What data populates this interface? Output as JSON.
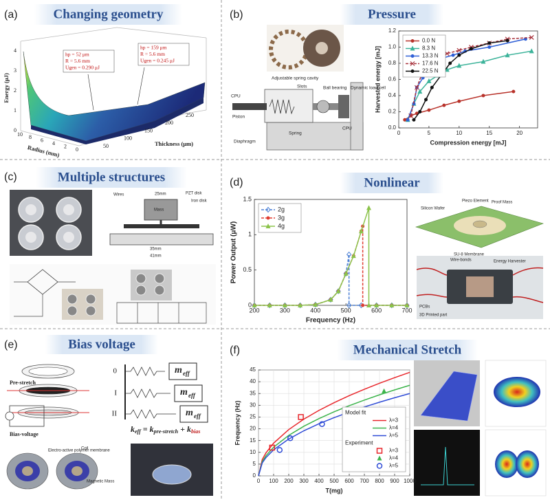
{
  "panels": [
    {
      "letter": "(a)",
      "title": "Changing geometry",
      "surface": {
        "zlabel": "Energy (μJ)",
        "xlabel": "Radius (mm)",
        "ylabel": "Thickness (μm)",
        "zticks": [
          0,
          1,
          2,
          3,
          4
        ],
        "xticks": [
          10,
          8,
          6,
          4,
          2,
          0
        ],
        "yticks": [
          50,
          100,
          150,
          200,
          250
        ],
        "annotations": [
          [
            "hp = 52 μm",
            "R = 5.6 mm",
            "Ugen = 0.290 μJ"
          ],
          [
            "hp = 159 μm",
            "R = 5.6 mm",
            "Ugen = 0.245 μJ"
          ]
        ]
      }
    },
    {
      "letter": "(b)",
      "title": "Pressure",
      "diagram_labels": [
        "Adjustable spring cavity",
        "Slots",
        "Ball bearing",
        "Dynamic load cell",
        "CPU",
        "Piston",
        "Spring",
        "Diaphragm",
        "CPU"
      ],
      "chart": {
        "type": "line",
        "xlabel": "Compression energy [mJ]",
        "ylabel": "Harvested energy [mJ]",
        "xlim": [
          0,
          23
        ],
        "xticks": [
          0,
          5,
          10,
          15,
          20
        ],
        "ylim": [
          0,
          1.2
        ],
        "yticks": [
          {
            "value": 0,
            "label": "0.0"
          },
          0.2,
          0.4,
          0.6,
          0.8,
          {
            "value": 1,
            "label": "1.0"
          },
          1.2
        ],
        "grid": false,
        "legend": "upper left",
        "series": [
          {
            "name": "0.0 N",
            "color": "#b8322a",
            "marker": "circle",
            "x": [
              1,
              2,
              3,
              5,
              7.5,
              10,
              14,
              19
            ],
            "values": [
              0.1,
              0.15,
              0.18,
              0.22,
              0.28,
              0.33,
              0.4,
              0.45
            ]
          },
          {
            "name": "8.3 N",
            "color": "#3cb39a",
            "marker": "triangle",
            "x": [
              1.5,
              2.5,
              3.5,
              5,
              6.5,
              8,
              10,
              14,
              18,
              22
            ],
            "values": [
              0.1,
              0.3,
              0.45,
              0.58,
              0.65,
              0.72,
              0.77,
              0.82,
              0.9,
              0.95
            ]
          },
          {
            "name": "13.3 N",
            "color": "#2e5fd6",
            "marker": "circle",
            "x": [
              1.5,
              2.5,
              3,
              4,
              5,
              6,
              7,
              9,
              11,
              15,
              21
            ],
            "values": [
              0.1,
              0.3,
              0.5,
              0.62,
              0.7,
              0.8,
              0.86,
              0.9,
              0.95,
              1.0,
              1.1
            ]
          },
          {
            "name": "17.6 N",
            "color": "#a8323c",
            "marker": "x",
            "dash": true,
            "x": [
              2,
              3,
              4,
              5,
              6,
              8,
              10,
              12,
              15,
              18,
              22
            ],
            "values": [
              0.15,
              0.5,
              0.7,
              0.82,
              0.87,
              0.92,
              0.96,
              1.0,
              1.05,
              1.1,
              1.12
            ]
          },
          {
            "name": "22.5 N",
            "color": "#111111",
            "marker": "circle",
            "x": [
              2.5,
              3.5,
              4.5,
              5.5,
              7,
              8.5,
              10,
              12,
              15,
              18
            ],
            "values": [
              0.1,
              0.2,
              0.35,
              0.5,
              0.65,
              0.8,
              0.9,
              0.98,
              1.05,
              1.08
            ]
          }
        ]
      }
    },
    {
      "letter": "(c)",
      "title": "Multiple structures",
      "diagram_labels": [
        "Wires",
        "Mass",
        "PZT disk",
        "Iron disk",
        "25mm",
        "35mm",
        "41mm"
      ]
    },
    {
      "letter": "(d)",
      "title": "Nonlinear",
      "diagram_labels": [
        "Silicon Wafer",
        "Piezo Element",
        "Proof Mass",
        "SU-8 Membrane",
        "Wire-bonds",
        "Energy Harvester",
        "PCBs",
        "3D Printed part"
      ],
      "chart": {
        "type": "line",
        "xlabel": "Frequency (Hz)",
        "ylabel": "Power Output (μW)",
        "xlim": [
          200,
          700
        ],
        "xticks": [
          200,
          300,
          400,
          500,
          600,
          700
        ],
        "ylim": [
          0,
          1.5
        ],
        "yticks": [
          0,
          0.5,
          1,
          1.5
        ],
        "grid": false,
        "legend": "upper left",
        "series": [
          {
            "name": "2g",
            "color": "#4a7fd4",
            "marker": "diamond",
            "dash": true,
            "x": [
              200,
              250,
              300,
              350,
              400,
              450,
              475,
              500,
              510,
              510,
              550,
              600,
              650,
              700
            ],
            "values": [
              0,
              0,
              0,
              0,
              0.01,
              0.08,
              0.2,
              0.45,
              0.72,
              0,
              0,
              0,
              0,
              0
            ]
          },
          {
            "name": "3g",
            "color": "#e03c31",
            "marker": "circle",
            "dash": true,
            "x": [
              200,
              250,
              300,
              350,
              400,
              450,
              475,
              500,
              525,
              550,
              555,
              555,
              600,
              650,
              700
            ],
            "values": [
              0,
              0,
              0,
              0,
              0.01,
              0.08,
              0.2,
              0.45,
              0.7,
              1.05,
              1.12,
              0,
              0,
              0,
              0
            ]
          },
          {
            "name": "4g",
            "color": "#8bc34a",
            "marker": "triangle",
            "x": [
              200,
              250,
              300,
              350,
              400,
              450,
              475,
              500,
              525,
              550,
              575,
              575,
              600,
              650,
              700
            ],
            "values": [
              0,
              0,
              0,
              0,
              0.01,
              0.08,
              0.2,
              0.45,
              0.7,
              1.05,
              1.38,
              0,
              0,
              0,
              0
            ]
          }
        ]
      }
    },
    {
      "letter": "(e)",
      "title": "Bias voltage",
      "diagram_labels": [
        "Pre-stretch",
        "Bias-voltage",
        "Electro-active polymer membrane",
        "Coil",
        "Magnetic Mass"
      ],
      "states": [
        "0",
        "I",
        "II"
      ],
      "mass": [
        "m",
        "eff"
      ],
      "formula": [
        "k",
        "eff",
        " = k",
        "pre-stretch",
        " + k",
        "bias"
      ]
    },
    {
      "letter": "(f)",
      "title": "Mechanical Stretch",
      "chart": {
        "type": "line",
        "xlabel": "T(mg)",
        "ylabel": "Frequency (Hz)",
        "xlim": [
          0,
          1000
        ],
        "xticks": [
          0,
          100,
          200,
          300,
          400,
          500,
          600,
          700,
          800,
          900,
          1000
        ],
        "ylim": [
          0,
          45
        ],
        "yticks": [
          0,
          5,
          10,
          15,
          20,
          25,
          30,
          35,
          40,
          45
        ],
        "grid": true,
        "legend": "lower right",
        "legend_titles": [
          "Model fit",
          "Experiment"
        ],
        "series": [
          {
            "name": "λ=3",
            "color": "#e8262b",
            "marker": "none",
            "kind": "line",
            "x": [
              0,
              25,
              50,
              100,
              200,
              300,
              400,
              500,
              600,
              700,
              800,
              900,
              1000
            ],
            "values": [
              0,
              6.96,
              9.84,
              13.91,
              19.67,
              24.1,
              27.83,
              31.11,
              34.08,
              36.81,
              39.35,
              41.74,
              44
            ]
          },
          {
            "name": "λ=4",
            "color": "#3cb44b",
            "marker": "none",
            "kind": "line",
            "x": [
              0,
              25,
              50,
              100,
              200,
              300,
              400,
              500,
              600,
              700,
              800,
              900,
              1000
            ],
            "values": [
              0,
              6.09,
              8.61,
              12.18,
              17.22,
              21.09,
              24.35,
              27.22,
              29.82,
              32.21,
              34.44,
              36.53,
              38.5
            ]
          },
          {
            "name": "λ=5",
            "color": "#2e4bd6",
            "marker": "none",
            "kind": "line",
            "x": [
              0,
              25,
              50,
              100,
              200,
              300,
              400,
              500,
              600,
              700,
              800,
              900,
              1000
            ],
            "values": [
              0,
              5.53,
              7.83,
              11.07,
              15.65,
              19.17,
              22.14,
              24.75,
              27.11,
              29.28,
              31.31,
              33.21,
              35
            ]
          },
          {
            "name": "λ=3",
            "color": "#e8262b",
            "marker": "square-open",
            "kind": "points",
            "x": [
              90,
              280
            ],
            "values": [
              12,
              25
            ]
          },
          {
            "name": "λ=4",
            "color": "#3cb44b",
            "marker": "triangle",
            "kind": "points",
            "x": [
              830
            ],
            "values": [
              36
            ]
          },
          {
            "name": "λ=5",
            "color": "#2e4bd6",
            "marker": "circle-open",
            "kind": "points",
            "x": [
              140,
              210,
              420
            ],
            "values": [
              11,
              16,
              22
            ]
          }
        ]
      }
    }
  ]
}
